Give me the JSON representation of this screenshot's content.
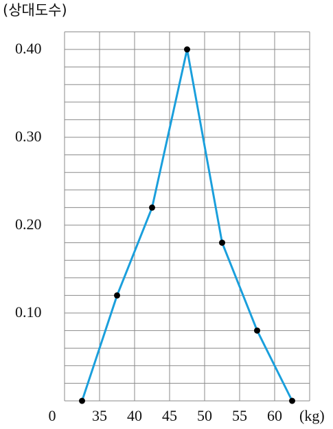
{
  "chart_data": {
    "type": "line",
    "y_label": "(상대도수)",
    "x_label": "(kg)",
    "origin_label": "0",
    "x": [
      32.5,
      37.5,
      42.5,
      47.5,
      52.5,
      57.5,
      62.5
    ],
    "series": [
      {
        "color": "#1a9fdc",
        "marker_color": "#000000",
        "values": [
          0,
          0.12,
          0.22,
          0.4,
          0.18,
          0.08,
          0
        ]
      }
    ],
    "xlim": [
      30,
      65
    ],
    "ylim": [
      0,
      0.42
    ],
    "xticks": [
      35,
      40,
      45,
      50,
      55,
      60
    ],
    "yticks": [
      {
        "value": 0.1,
        "label": "0.10"
      },
      {
        "value": 0.2,
        "label": "0.20"
      },
      {
        "value": 0.3,
        "label": "0.30"
      },
      {
        "value": 0.4,
        "label": "0.40"
      }
    ],
    "y_minor_ticks": [
      0.02,
      0.04,
      0.06,
      0.08,
      0.12,
      0.14,
      0.16,
      0.18,
      0.22,
      0.24,
      0.26,
      0.28,
      0.32,
      0.34,
      0.36,
      0.38
    ],
    "grid": true
  }
}
